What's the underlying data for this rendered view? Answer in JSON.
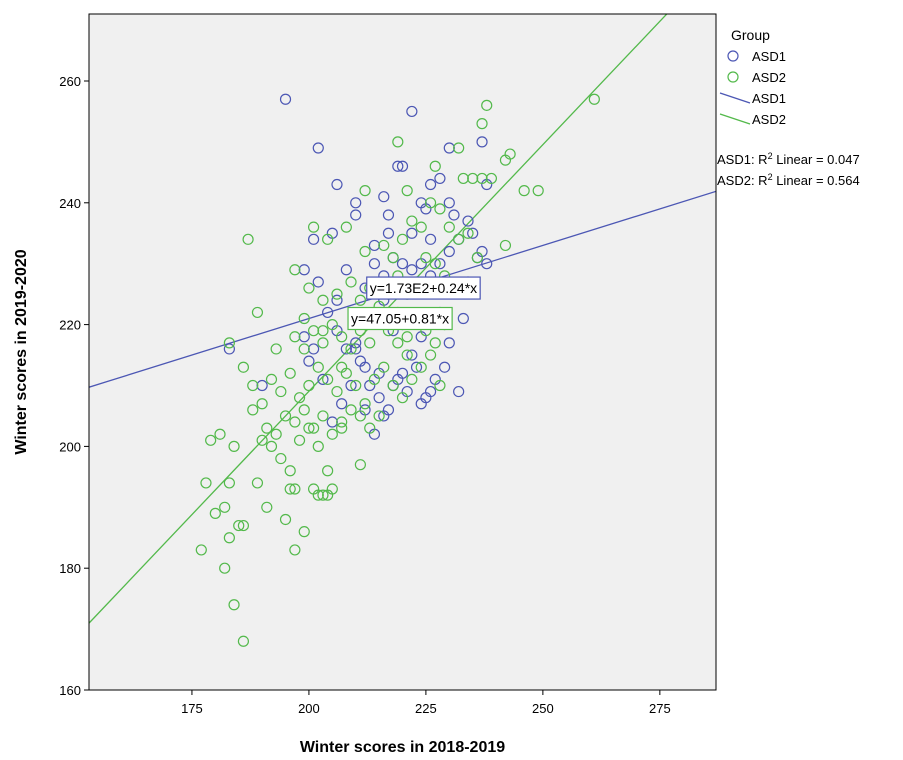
{
  "chart_data": {
    "type": "scatter",
    "xlabel": "Winter scores in 2018-2019",
    "ylabel": "Winter scores in 2019-2020",
    "xlim": [
      153,
      287
    ],
    "ylim": [
      160,
      271
    ],
    "xticks": [
      175,
      200,
      225,
      250,
      275
    ],
    "yticks": [
      160,
      180,
      200,
      220,
      240,
      260
    ],
    "grid": false,
    "background": "#f0f0f0",
    "legend": {
      "title": "Group",
      "placement": "right",
      "entries": [
        {
          "label": "ASD1",
          "kind": "marker",
          "color": "#4c57b4"
        },
        {
          "label": "ASD2",
          "kind": "marker",
          "color": "#53b94b"
        },
        {
          "label": "ASD1",
          "kind": "line",
          "color": "#4c57b4"
        },
        {
          "label": "ASD2",
          "kind": "line",
          "color": "#53b94b"
        }
      ]
    },
    "r2_labels": [
      {
        "group": "ASD1",
        "prefix": "ASD1: R",
        "sup": "2",
        "suffix": " Linear = 0.047"
      },
      {
        "group": "ASD2",
        "prefix": "ASD2: R",
        "sup": "2",
        "suffix": " Linear = 0.564"
      }
    ],
    "series": [
      {
        "name": "ASD1",
        "color": "#4c57b4",
        "fit": {
          "intercept": 173,
          "slope": 0.24,
          "label": "y=1.73E2+0.24*x",
          "label_at": [
            213,
            226
          ]
        },
        "points": [
          [
            195,
            257
          ],
          [
            222,
            255
          ],
          [
            202,
            249
          ],
          [
            230,
            249
          ],
          [
            237,
            250
          ],
          [
            206,
            243
          ],
          [
            216,
            241
          ],
          [
            219,
            246
          ],
          [
            220,
            246
          ],
          [
            226,
            243
          ],
          [
            228,
            244
          ],
          [
            210,
            240
          ],
          [
            217,
            238
          ],
          [
            224,
            240
          ],
          [
            225,
            239
          ],
          [
            230,
            240
          ],
          [
            238,
            243
          ],
          [
            201,
            234
          ],
          [
            205,
            235
          ],
          [
            210,
            238
          ],
          [
            214,
            233
          ],
          [
            217,
            235
          ],
          [
            222,
            235
          ],
          [
            226,
            234
          ],
          [
            231,
            238
          ],
          [
            234,
            237
          ],
          [
            235,
            235
          ],
          [
            237,
            232
          ],
          [
            199,
            229
          ],
          [
            202,
            227
          ],
          [
            206,
            224
          ],
          [
            208,
            229
          ],
          [
            212,
            226
          ],
          [
            214,
            230
          ],
          [
            216,
            228
          ],
          [
            218,
            231
          ],
          [
            220,
            230
          ],
          [
            222,
            229
          ],
          [
            224,
            230
          ],
          [
            226,
            228
          ],
          [
            228,
            230
          ],
          [
            230,
            232
          ],
          [
            232,
            234
          ],
          [
            234,
            227
          ],
          [
            236,
            231
          ],
          [
            238,
            230
          ],
          [
            199,
            218
          ],
          [
            201,
            216
          ],
          [
            204,
            222
          ],
          [
            206,
            219
          ],
          [
            208,
            216
          ],
          [
            210,
            217
          ],
          [
            212,
            213
          ],
          [
            214,
            221
          ],
          [
            216,
            224
          ],
          [
            218,
            219
          ],
          [
            220,
            220
          ],
          [
            222,
            215
          ],
          [
            224,
            218
          ],
          [
            226,
            221
          ],
          [
            228,
            222
          ],
          [
            230,
            217
          ],
          [
            233,
            221
          ],
          [
            200,
            214
          ],
          [
            203,
            211
          ],
          [
            207,
            207
          ],
          [
            209,
            210
          ],
          [
            211,
            214
          ],
          [
            213,
            210
          ],
          [
            215,
            208
          ],
          [
            217,
            206
          ],
          [
            219,
            211
          ],
          [
            221,
            209
          ],
          [
            223,
            213
          ],
          [
            225,
            208
          ],
          [
            227,
            211
          ],
          [
            229,
            213
          ],
          [
            232,
            209
          ],
          [
            183,
            216
          ],
          [
            190,
            210
          ],
          [
            205,
            204
          ],
          [
            212,
            206
          ],
          [
            214,
            202
          ],
          [
            216,
            205
          ],
          [
            218,
            210
          ],
          [
            220,
            212
          ],
          [
            224,
            207
          ],
          [
            226,
            209
          ],
          [
            210,
            216
          ],
          [
            215,
            212
          ]
        ]
      },
      {
        "name": "ASD2",
        "color": "#53b94b",
        "fit": {
          "intercept": 47.05,
          "slope": 0.81,
          "label": "y=47.05+0.81*x",
          "label_at": [
            209,
            221
          ]
        },
        "points": [
          [
            261,
            257
          ],
          [
            238,
            256
          ],
          [
            237,
            253
          ],
          [
            243,
            248
          ],
          [
            242,
            247
          ],
          [
            219,
            250
          ],
          [
            212,
            242
          ],
          [
            221,
            242
          ],
          [
            227,
            246
          ],
          [
            232,
            249
          ],
          [
            233,
            244
          ],
          [
            235,
            244
          ],
          [
            237,
            244
          ],
          [
            239,
            244
          ],
          [
            246,
            242
          ],
          [
            249,
            242
          ],
          [
            242,
            233
          ],
          [
            187,
            234
          ],
          [
            201,
            236
          ],
          [
            204,
            234
          ],
          [
            208,
            236
          ],
          [
            212,
            232
          ],
          [
            216,
            233
          ],
          [
            218,
            231
          ],
          [
            220,
            234
          ],
          [
            222,
            237
          ],
          [
            224,
            236
          ],
          [
            226,
            240
          ],
          [
            228,
            239
          ],
          [
            230,
            236
          ],
          [
            232,
            234
          ],
          [
            234,
            235
          ],
          [
            236,
            231
          ],
          [
            197,
            229
          ],
          [
            200,
            226
          ],
          [
            203,
            224
          ],
          [
            206,
            225
          ],
          [
            209,
            227
          ],
          [
            211,
            224
          ],
          [
            213,
            226
          ],
          [
            215,
            223
          ],
          [
            217,
            225
          ],
          [
            219,
            228
          ],
          [
            221,
            225
          ],
          [
            223,
            227
          ],
          [
            225,
            231
          ],
          [
            227,
            230
          ],
          [
            229,
            228
          ],
          [
            231,
            226
          ],
          [
            189,
            222
          ],
          [
            193,
            216
          ],
          [
            197,
            218
          ],
          [
            199,
            221
          ],
          [
            201,
            219
          ],
          [
            203,
            217
          ],
          [
            205,
            220
          ],
          [
            207,
            218
          ],
          [
            209,
            216
          ],
          [
            211,
            219
          ],
          [
            213,
            217
          ],
          [
            215,
            221
          ],
          [
            217,
            219
          ],
          [
            219,
            217
          ],
          [
            221,
            218
          ],
          [
            223,
            221
          ],
          [
            225,
            219
          ],
          [
            227,
            217
          ],
          [
            229,
            220
          ],
          [
            183,
            217
          ],
          [
            186,
            213
          ],
          [
            188,
            210
          ],
          [
            190,
            207
          ],
          [
            192,
            211
          ],
          [
            194,
            209
          ],
          [
            196,
            212
          ],
          [
            198,
            208
          ],
          [
            200,
            210
          ],
          [
            202,
            213
          ],
          [
            204,
            211
          ],
          [
            206,
            209
          ],
          [
            208,
            212
          ],
          [
            210,
            210
          ],
          [
            212,
            207
          ],
          [
            214,
            211
          ],
          [
            216,
            213
          ],
          [
            218,
            210
          ],
          [
            220,
            208
          ],
          [
            222,
            211
          ],
          [
            224,
            213
          ],
          [
            226,
            215
          ],
          [
            228,
            210
          ],
          [
            191,
            203
          ],
          [
            193,
            202
          ],
          [
            195,
            205
          ],
          [
            197,
            204
          ],
          [
            199,
            206
          ],
          [
            201,
            203
          ],
          [
            203,
            205
          ],
          [
            205,
            202
          ],
          [
            207,
            204
          ],
          [
            209,
            206
          ],
          [
            211,
            205
          ],
          [
            213,
            203
          ],
          [
            215,
            205
          ],
          [
            179,
            201
          ],
          [
            181,
            202
          ],
          [
            184,
            200
          ],
          [
            188,
            206
          ],
          [
            190,
            201
          ],
          [
            192,
            200
          ],
          [
            194,
            198
          ],
          [
            196,
            196
          ],
          [
            198,
            201
          ],
          [
            200,
            203
          ],
          [
            202,
            200
          ],
          [
            204,
            196
          ],
          [
            207,
            203
          ],
          [
            211,
            197
          ],
          [
            178,
            194
          ],
          [
            183,
            194
          ],
          [
            189,
            194
          ],
          [
            191,
            190
          ],
          [
            195,
            188
          ],
          [
            196,
            193
          ],
          [
            197,
            193
          ],
          [
            199,
            186
          ],
          [
            201,
            193
          ],
          [
            203,
            192
          ],
          [
            205,
            193
          ],
          [
            204,
            192
          ],
          [
            202,
            192
          ],
          [
            177,
            183
          ],
          [
            180,
            189
          ],
          [
            182,
            190
          ],
          [
            183,
            185
          ],
          [
            185,
            187
          ],
          [
            186,
            187
          ],
          [
            197,
            183
          ],
          [
            182,
            180
          ],
          [
            184,
            174
          ],
          [
            186,
            168
          ],
          [
            199,
            216
          ],
          [
            203,
            219
          ],
          [
            207,
            213
          ],
          [
            219,
            222
          ],
          [
            221,
            215
          ]
        ]
      }
    ]
  }
}
